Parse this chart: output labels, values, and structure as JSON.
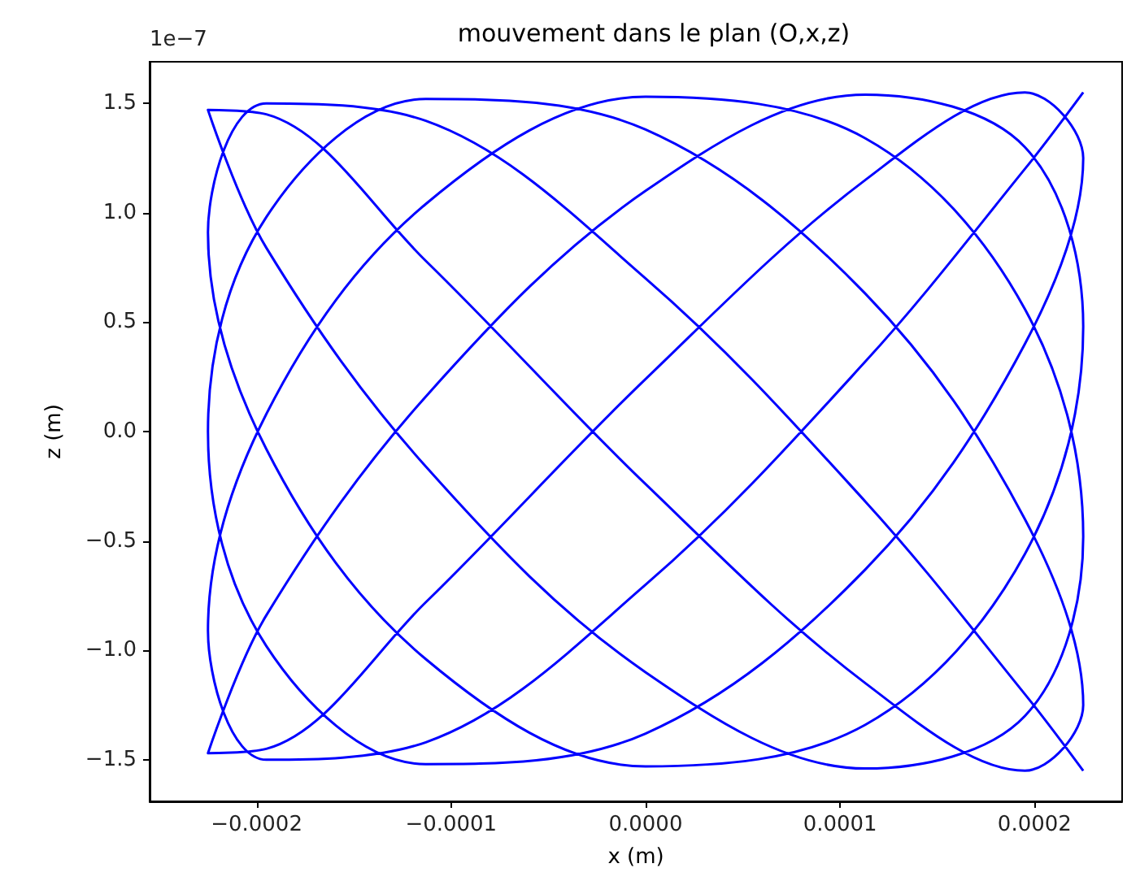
{
  "chart_data": {
    "type": "line",
    "title": "mouvement dans le plan (O,x,z)",
    "xlabel": "x (m)",
    "ylabel": "z (m)",
    "annotations": [
      "1e−7"
    ],
    "xlim": [
      -0.000255,
      0.000245
    ],
    "ylim": [
      -1.69,
      1.69
    ],
    "xticks": [
      {
        "value": -0.0002,
        "label": "−0.0002"
      },
      {
        "value": -0.0001,
        "label": "−0.0001"
      },
      {
        "value": 0,
        "label": "0.0000"
      },
      {
        "value": 0.0001,
        "label": "0.0001"
      },
      {
        "value": 0.0002,
        "label": "0.0002"
      }
    ],
    "yticks": [
      {
        "value": -1.5,
        "label": "−1.5"
      },
      {
        "value": -1.0,
        "label": "−1.0"
      },
      {
        "value": -0.5,
        "label": "−0.5"
      },
      {
        "value": 0,
        "label": "0.0"
      },
      {
        "value": 0.5,
        "label": "0.5"
      },
      {
        "value": 1.0,
        "label": "1.0"
      },
      {
        "value": 1.5,
        "label": "1.5"
      }
    ],
    "grid": false,
    "marker": "none",
    "line_style": "solid",
    "series": [
      {
        "color": "#0000ff",
        "x": [
          0.000225,
          0.000195,
          0.000113,
          0,
          -0.000113,
          -0.000195,
          -0.000225,
          -0.000195,
          -0.000113,
          0,
          0.000113,
          0.000195,
          0.000225,
          0.000195,
          0.000113,
          0,
          -0.000113,
          -0.000195,
          -0.000225,
          -0.000195,
          -0.000113,
          0,
          0.000113,
          0.000195,
          0.000225,
          0.000195,
          0.000113,
          0,
          -0.000113,
          -0.000195,
          -0.000225,
          -0.000195,
          -0.000113,
          0,
          0.000113,
          0.000195,
          0.000225,
          0.000195,
          0.000113,
          0,
          -0.000113,
          -0.000195,
          -0.000225,
          -0.000195,
          -0.000113,
          0,
          0.000113,
          0.000195,
          0.000225,
          0.000195,
          0.000113,
          0,
          -0.000113,
          -0.000195,
          -0.000225,
          -0.000195,
          -0.000113,
          0,
          0.000113,
          0.000195,
          0.000225
        ],
        "values": [
          1.55,
          1.2,
          0.32,
          -0.7,
          -1.42,
          -1.5,
          -0.91,
          0.08,
          1.04,
          1.53,
          1.34,
          0.56,
          -0.48,
          -1.3,
          -1.54,
          -1.1,
          -0.16,
          0.84,
          1.47,
          1.45,
          0.78,
          -0.24,
          -1.15,
          -1.55,
          -1.25,
          -0.4,
          0.63,
          1.38,
          1.52,
          0.98,
          0,
          -0.98,
          -1.52,
          -1.38,
          -0.63,
          0.4,
          1.25,
          1.55,
          1.15,
          0.24,
          -0.78,
          -1.45,
          -1.47,
          -0.84,
          0.16,
          1.1,
          1.54,
          1.3,
          0.48,
          -0.56,
          -1.34,
          -1.53,
          -1.04,
          -0.08,
          0.91,
          1.5,
          1.42,
          0.7,
          -0.32,
          -1.2,
          -1.55
        ]
      }
    ]
  }
}
